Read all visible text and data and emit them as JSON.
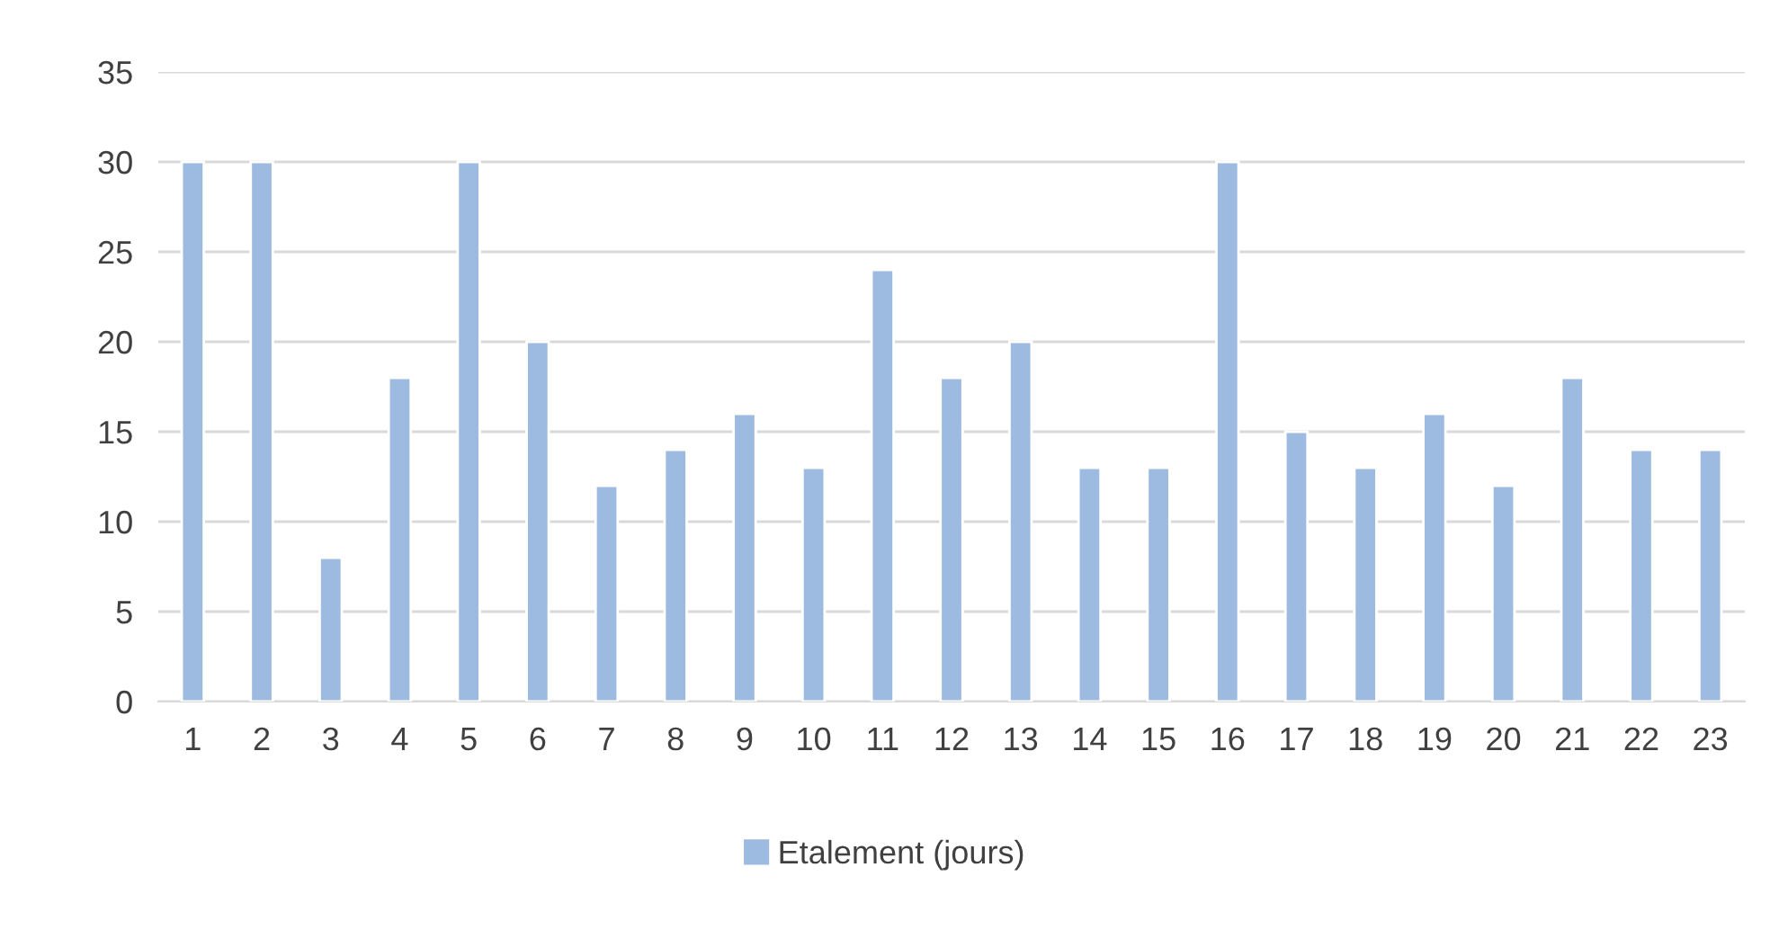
{
  "chart_data": {
    "type": "bar",
    "categories": [
      "1",
      "2",
      "3",
      "4",
      "5",
      "6",
      "7",
      "8",
      "9",
      "10",
      "11",
      "12",
      "13",
      "14",
      "15",
      "16",
      "17",
      "18",
      "19",
      "20",
      "21",
      "22",
      "23"
    ],
    "series": [
      {
        "name": "Etalement (jours)",
        "color": "#9dbbe1",
        "values": [
          30,
          30,
          8,
          18,
          30,
          20,
          12,
          14,
          16,
          13,
          24,
          18,
          20,
          13,
          13,
          30,
          15,
          13,
          16,
          12,
          18,
          14,
          14
        ]
      }
    ],
    "ylim": [
      0,
      35
    ],
    "yticks": [
      0,
      5,
      10,
      15,
      20,
      25,
      30,
      35
    ],
    "grid": "y",
    "legend": "bottom"
  }
}
